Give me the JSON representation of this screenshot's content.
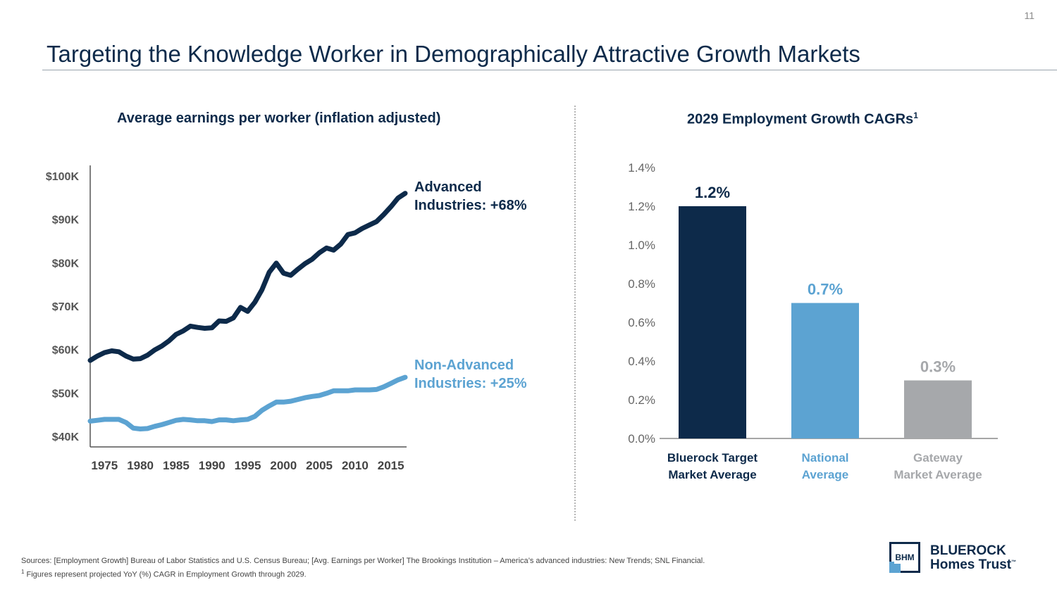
{
  "page_number": "11",
  "title": "Targeting the Knowledge Worker in Demographically Attractive Growth Markets",
  "colors": {
    "navy": "#0d2a4a",
    "light_blue": "#5ca3d2",
    "gray": "#a6a8ab"
  },
  "chart_data": [
    {
      "type": "line",
      "title": "Average earnings per worker (inflation adjusted)",
      "ylim": [
        40000,
        100000
      ],
      "xlim": [
        1973,
        2017
      ],
      "y_ticks": [
        "$40K",
        "$50K",
        "$60K",
        "$70K",
        "$80K",
        "$90K",
        "$100K"
      ],
      "x_ticks": [
        "1975",
        "1980",
        "1985",
        "1990",
        "1995",
        "2000",
        "2005",
        "2010",
        "2015"
      ],
      "x": [
        1973,
        1974,
        1975,
        1976,
        1977,
        1978,
        1979,
        1980,
        1981,
        1982,
        1983,
        1984,
        1985,
        1986,
        1987,
        1988,
        1989,
        1990,
        1991,
        1992,
        1993,
        1994,
        1995,
        1996,
        1997,
        1998,
        1999,
        2000,
        2001,
        2002,
        2003,
        2004,
        2005,
        2006,
        2007,
        2008,
        2009,
        2010,
        2011,
        2012,
        2013,
        2014,
        2015,
        2016,
        2017
      ],
      "series": [
        {
          "name": "Advanced Industries: +68%",
          "label_line1": "Advanced",
          "label_line2": "Industries: +68%",
          "color": "#0d2a4a",
          "values": [
            57500,
            58500,
            59300,
            59700,
            59500,
            58500,
            57800,
            57900,
            58700,
            59900,
            60800,
            62000,
            63500,
            64300,
            65400,
            65100,
            64900,
            65000,
            66600,
            66500,
            67300,
            69700,
            68800,
            70900,
            73800,
            77800,
            79900,
            77600,
            77100,
            78500,
            79800,
            80800,
            82300,
            83400,
            82900,
            84300,
            86500,
            86900,
            87900,
            88700,
            89500,
            91100,
            92900,
            94900,
            96000
          ]
        },
        {
          "name": "Non-Advanced Industries: +25%",
          "label_line1": "Non-Advanced",
          "label_line2": "Industries: +25%",
          "color": "#5ca3d2",
          "values": [
            43500,
            43700,
            43900,
            43900,
            43900,
            43200,
            41900,
            41700,
            41800,
            42300,
            42700,
            43200,
            43700,
            43900,
            43800,
            43600,
            43600,
            43400,
            43800,
            43800,
            43600,
            43800,
            43900,
            44600,
            46000,
            47000,
            47900,
            47900,
            48100,
            48500,
            48900,
            49200,
            49400,
            49900,
            50500,
            50500,
            50500,
            50700,
            50700,
            50700,
            50800,
            51400,
            52200,
            53000,
            53600
          ]
        }
      ]
    },
    {
      "type": "bar",
      "title": "2029 Employment Growth CAGRs",
      "title_sup": "1",
      "ylim": [
        0,
        1.4
      ],
      "y_ticks": [
        "0.0%",
        "0.2%",
        "0.4%",
        "0.6%",
        "0.8%",
        "1.0%",
        "1.2%",
        "1.4%"
      ],
      "categories": [
        {
          "line1": "Bluerock Target",
          "line2": "Market Average",
          "value": 1.2,
          "label": "1.2%",
          "color": "#0d2a4a",
          "label_color": "#0d2a4a"
        },
        {
          "line1": "National",
          "line2": "Average",
          "value": 0.7,
          "label": "0.7%",
          "color": "#5ca3d2",
          "label_color": "#5ca3d2"
        },
        {
          "line1": "Gateway",
          "line2": "Market Average",
          "value": 0.3,
          "label": "0.3%",
          "color": "#a6a8ab",
          "label_color": "#a6a8ab"
        }
      ]
    }
  ],
  "footer": {
    "sources": "Sources: [Employment Growth] Bureau of Labor Statistics and U.S. Census Bureau; [Avg. Earnings per Worker] The Brookings Institution – America’s advanced industries: New Trends; SNL Financial.",
    "note_marker": "1",
    "note": " Figures represent projected YoY (%) CAGR in Employment Growth through 2029."
  },
  "logo": {
    "box_text": "BHM",
    "line1": "BLUEROCK",
    "line2": "Homes Trust",
    "tm": "™"
  }
}
